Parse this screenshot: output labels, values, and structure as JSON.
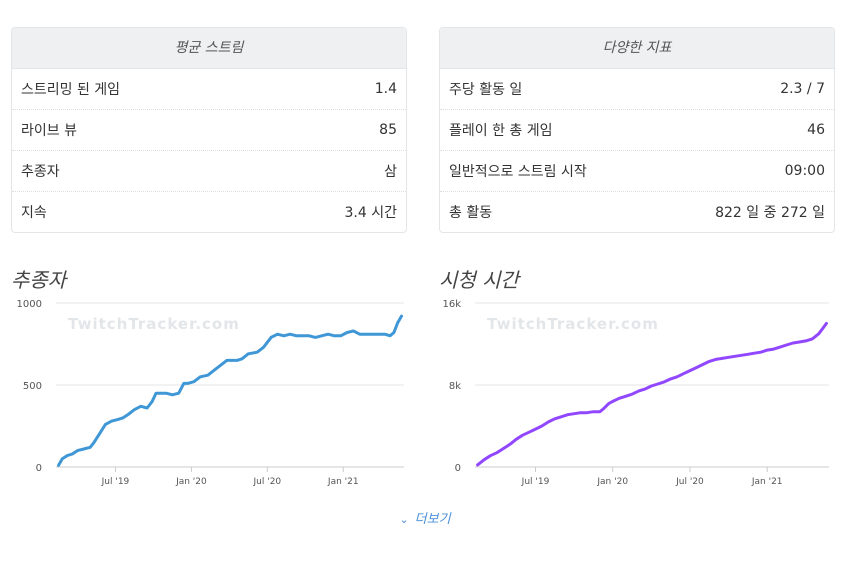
{
  "avg_panel": {
    "title": "평균 스트림",
    "rows": [
      {
        "label": "스트리밍 된 게임",
        "value": "1.4"
      },
      {
        "label": "라이브 뷰",
        "value": "85"
      },
      {
        "label": "추종자",
        "value": "삼"
      },
      {
        "label": "지속",
        "value": "3.4 시간"
      }
    ]
  },
  "metrics_panel": {
    "title": "다양한 지표",
    "rows": [
      {
        "label": "주당 활동 일",
        "value": "2.3 / 7"
      },
      {
        "label": "플레이 한 총 게임",
        "value": "46"
      },
      {
        "label": "일반적으로 스트림 시작",
        "value": "09:00"
      },
      {
        "label": "총 활동",
        "value": "822 일 중 272 일"
      }
    ]
  },
  "more_label": "더보기",
  "more_icon": "chevron-down-icon",
  "watermark": "TwitchTracker.com",
  "chart_data": [
    {
      "type": "line",
      "title": "추종자",
      "color": "#3f97d6",
      "ylim": [
        0,
        1000
      ],
      "yticks": [
        0,
        500,
        1000
      ],
      "ytick_labels": [
        "0",
        "500",
        "1000"
      ],
      "xticks": [
        7,
        13,
        19,
        25
      ],
      "xtick_labels": [
        "Jul '19",
        "Jan '20",
        "Jul '20",
        "Jan '21"
      ],
      "x_range": [
        2.3,
        29.8
      ],
      "series": [
        {
          "x": [
            2.5,
            2.8,
            3.2,
            3.6,
            4.0,
            4.5,
            5.0,
            5.3,
            5.8,
            6.2,
            6.7,
            7.2,
            7.6,
            8.0,
            8.5,
            9.0,
            9.5,
            9.9,
            10.2,
            10.6,
            11.0,
            11.5,
            12.0,
            12.4,
            12.7,
            13.2,
            13.7,
            14.3,
            14.8,
            15.3,
            15.8,
            16.2,
            16.6,
            17.0,
            17.5,
            18.2,
            18.7,
            19.3,
            19.8,
            20.3,
            20.8,
            21.3,
            21.8,
            22.3,
            22.8,
            23.3,
            23.8,
            24.3,
            24.8,
            25.3,
            25.8,
            26.3,
            26.8,
            27.3,
            27.8,
            28.3,
            28.7,
            29.0,
            29.3,
            29.6
          ],
          "y": [
            10,
            50,
            70,
            80,
            100,
            110,
            120,
            150,
            210,
            260,
            280,
            290,
            300,
            320,
            350,
            370,
            360,
            400,
            450,
            450,
            450,
            440,
            450,
            510,
            510,
            520,
            550,
            560,
            590,
            620,
            650,
            650,
            650,
            660,
            690,
            700,
            730,
            790,
            810,
            800,
            810,
            800,
            800,
            800,
            790,
            800,
            810,
            800,
            800,
            820,
            830,
            810,
            810,
            810,
            810,
            810,
            800,
            820,
            880,
            920
          ]
        }
      ]
    },
    {
      "type": "line",
      "title": "시청 시간",
      "color": "#9147ff",
      "ylim": [
        0,
        16000
      ],
      "yticks": [
        0,
        8000,
        16000
      ],
      "ytick_labels": [
        "0",
        "8k",
        "16k"
      ],
      "xticks": [
        7,
        13,
        19,
        25
      ],
      "xtick_labels": [
        "Jul '19",
        "Jan '20",
        "Jul '20",
        "Jan '21"
      ],
      "x_range": [
        2.3,
        29.8
      ],
      "series": [
        {
          "x": [
            2.5,
            3.0,
            3.5,
            4.0,
            4.5,
            5.0,
            5.5,
            6.0,
            6.5,
            7.0,
            7.5,
            8.0,
            8.5,
            9.0,
            9.5,
            10.0,
            10.5,
            11.0,
            11.5,
            12.0,
            12.3,
            12.7,
            13.0,
            13.5,
            14.0,
            14.5,
            15.0,
            15.5,
            16.0,
            16.5,
            17.0,
            17.5,
            18.0,
            18.5,
            19.0,
            19.5,
            20.0,
            20.5,
            21.0,
            21.5,
            22.0,
            22.5,
            23.0,
            23.5,
            24.0,
            24.5,
            25.0,
            25.5,
            26.0,
            26.5,
            27.0,
            27.5,
            28.0,
            28.5,
            29.0,
            29.3,
            29.6
          ],
          "y": [
            200,
            700,
            1100,
            1400,
            1800,
            2200,
            2700,
            3100,
            3400,
            3700,
            4000,
            4400,
            4700,
            4900,
            5100,
            5200,
            5300,
            5300,
            5400,
            5400,
            5700,
            6200,
            6400,
            6700,
            6900,
            7100,
            7400,
            7600,
            7900,
            8100,
            8300,
            8600,
            8800,
            9100,
            9400,
            9700,
            10000,
            10300,
            10500,
            10600,
            10700,
            10800,
            10900,
            11000,
            11100,
            11200,
            11400,
            11500,
            11700,
            11900,
            12100,
            12200,
            12300,
            12500,
            13000,
            13500,
            14000
          ]
        }
      ]
    }
  ]
}
